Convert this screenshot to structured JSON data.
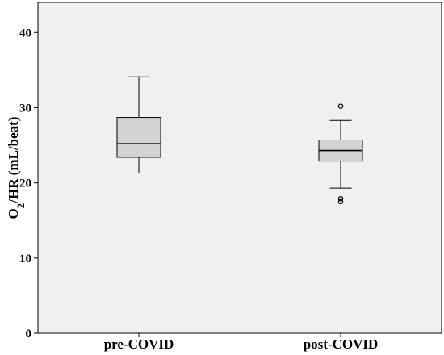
{
  "chart_data": {
    "type": "boxplot",
    "title": "",
    "xlabel": "",
    "ylabel": {
      "prefix": "O",
      "subscript": "2",
      "suffix": "/HR (mL/beat)"
    },
    "ylim": [
      0,
      44
    ],
    "yticks": [
      0,
      10,
      20,
      30,
      40
    ],
    "grid": false,
    "categories": [
      "pre-COVID",
      "post-COVID"
    ],
    "boxes": [
      {
        "name": "pre-COVID",
        "whisker_low": 21.3,
        "q1": 23.4,
        "median": 25.2,
        "q3": 28.7,
        "whisker_high": 34.1,
        "outliers": []
      },
      {
        "name": "post-COVID",
        "whisker_low": 19.3,
        "q1": 22.9,
        "median": 24.3,
        "q3": 25.7,
        "whisker_high": 28.3,
        "outliers": [
          30.2,
          17.9,
          17.5
        ]
      }
    ],
    "colors": {
      "plot_background": "#f0f0f0",
      "box_fill": "#d3d3d3",
      "line": "#000000"
    }
  }
}
